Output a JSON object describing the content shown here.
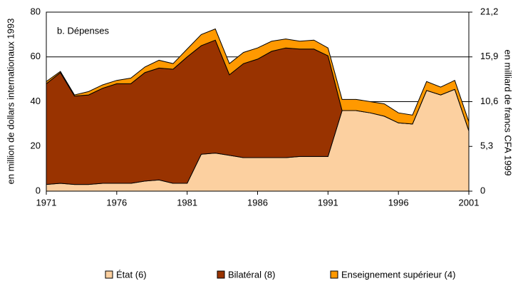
{
  "chart_data": {
    "type": "stacked-area",
    "title": "b. Dépenses",
    "y_label": "en million de dollars internationaux 1993",
    "y2_label": "en milliard de francs CFA 1999",
    "x": [
      1971,
      1972,
      1973,
      1974,
      1975,
      1976,
      1977,
      1978,
      1979,
      1980,
      1981,
      1982,
      1983,
      1984,
      1985,
      1986,
      1987,
      1988,
      1989,
      1990,
      1991,
      1992,
      1993,
      1994,
      1995,
      1996,
      1997,
      1998,
      1999,
      2000,
      2001
    ],
    "xlim": [
      1971,
      2001
    ],
    "xticks": [
      1971,
      1976,
      1981,
      1986,
      1991,
      1996,
      2001
    ],
    "ylim": [
      0,
      80
    ],
    "yticks": [
      0,
      20,
      40,
      60,
      80
    ],
    "y2lim": [
      0,
      21.2
    ],
    "y2ticks": [
      0,
      {
        "value": 5.3,
        "label": "5,3"
      },
      {
        "value": 10.6,
        "label": "10,6"
      },
      {
        "value": 15.9,
        "label": "15,9"
      },
      {
        "value": 21.2,
        "label": "21,2"
      }
    ],
    "grid": true,
    "series": [
      {
        "name": "État (6)",
        "color": "#fcd0a0",
        "values": [
          3,
          3.5,
          3,
          3,
          3.5,
          3.5,
          3.5,
          4.5,
          5,
          3.5,
          3.5,
          16.5,
          17,
          16,
          15,
          15,
          15,
          15,
          15.5,
          15.5,
          15.5,
          36,
          36,
          35,
          33.5,
          30.5,
          30,
          45,
          43,
          45.5,
          27
        ]
      },
      {
        "name": "Bilatéral (8)",
        "color": "#993300",
        "values": [
          45,
          49.5,
          39.5,
          40,
          42.5,
          44.5,
          44.5,
          48.5,
          50,
          51,
          56.5,
          48.5,
          50.5,
          36,
          42,
          44,
          47.5,
          49,
          48,
          48,
          45,
          0,
          0,
          0,
          0,
          0,
          0,
          0,
          0,
          0,
          0
        ]
      },
      {
        "name": "Enseignement supérieur (4)",
        "color": "#ff9900",
        "values": [
          1,
          0.5,
          0.5,
          1.5,
          1.5,
          1.5,
          2.5,
          2.5,
          3.5,
          2.5,
          3.5,
          5,
          5,
          5,
          5,
          5,
          4.5,
          4,
          3.5,
          4,
          3.5,
          5,
          5,
          5,
          5.5,
          4.5,
          4,
          4,
          3.5,
          4,
          4
        ]
      }
    ]
  }
}
